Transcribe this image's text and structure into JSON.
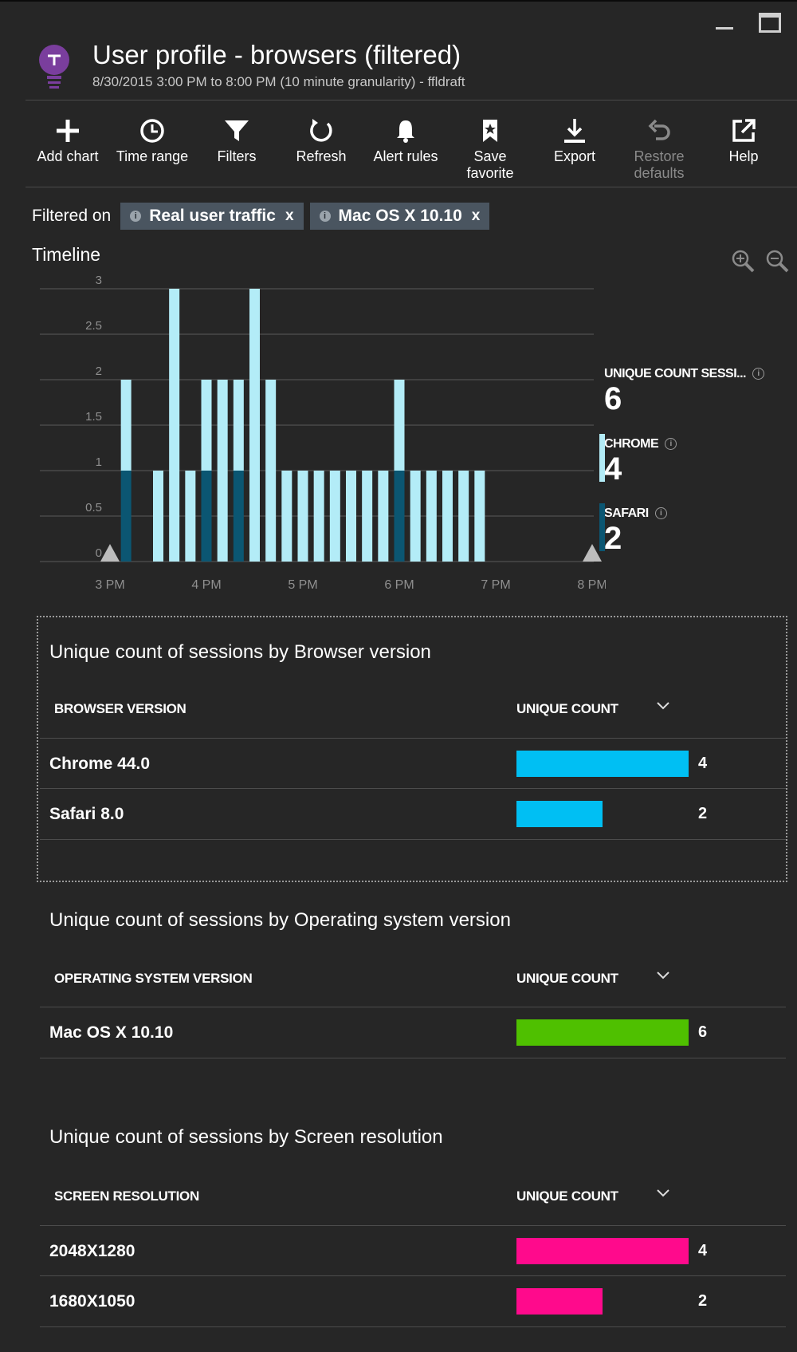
{
  "header": {
    "title": "User profile - browsers (filtered)",
    "subtitle": "8/30/2015 3:00 PM to 8:00 PM (10 minute granularity) - ffldraft"
  },
  "toolbar": {
    "add_chart": "Add chart",
    "time_range": "Time range",
    "filters": "Filters",
    "refresh": "Refresh",
    "alert_rules": "Alert rules",
    "save_favorite_1": "Save",
    "save_favorite_2": "favorite",
    "export": "Export",
    "restore_defaults_1": "Restore",
    "restore_defaults_2": "defaults",
    "help": "Help"
  },
  "filters": {
    "label": "Filtered on",
    "chips": [
      "Real user traffic",
      "Mac OS X 10.10"
    ],
    "remove": "x"
  },
  "timeline": {
    "title": "Timeline"
  },
  "legend": {
    "total_label": "UNIQUE COUNT SESSI...",
    "total_value": "6",
    "chrome_label": "CHROME",
    "chrome_value": "4",
    "safari_label": "SAFARI",
    "safari_value": "2",
    "info": "i"
  },
  "chart_data": {
    "type": "bar",
    "stacked": true,
    "title": "Timeline",
    "ylim": [
      0,
      3
    ],
    "yticks": [
      "0",
      "0.5",
      "1",
      "1.5",
      "2",
      "2.5",
      "3"
    ],
    "xticks": [
      "3 PM",
      "4 PM",
      "5 PM",
      "6 PM",
      "7 PM",
      "8 PM"
    ],
    "x": [
      "3:10",
      "3:20",
      "3:30",
      "3:40",
      "3:50",
      "4:00",
      "4:10",
      "4:20",
      "4:30",
      "4:40",
      "4:50",
      "5:00",
      "5:10",
      "5:20",
      "5:30",
      "5:40",
      "5:50",
      "6:00",
      "6:10",
      "6:20",
      "6:30",
      "6:40",
      "6:50"
    ],
    "series": [
      {
        "name": "SAFARI",
        "color": "#0b5672",
        "values": [
          1,
          0,
          0,
          0,
          0,
          1,
          0,
          1,
          0,
          0,
          0,
          0,
          0,
          0,
          0,
          0,
          0,
          1,
          0,
          0,
          0,
          0,
          0
        ]
      },
      {
        "name": "CHROME",
        "color": "#b3ecf7",
        "values": [
          1,
          0,
          1,
          3,
          1,
          1,
          2,
          1,
          3,
          2,
          1,
          1,
          1,
          1,
          1,
          1,
          1,
          1,
          1,
          1,
          1,
          1,
          1
        ]
      }
    ]
  },
  "grids": [
    {
      "title": "Unique count of sessions by Browser version",
      "col1": "BROWSER VERSION",
      "col2": "UNIQUE COUNT",
      "color": "#00bff3",
      "max": 4,
      "rows": [
        {
          "name": "Chrome 44.0",
          "value": 4,
          "label": "4"
        },
        {
          "name": "Safari 8.0",
          "value": 2,
          "label": "2"
        }
      ]
    },
    {
      "title": "Unique count of sessions by Operating system version",
      "col1": "OPERATING SYSTEM VERSION",
      "col2": "UNIQUE COUNT",
      "color": "#4fc000",
      "max": 6,
      "rows": [
        {
          "name": "Mac OS X 10.10",
          "value": 6,
          "label": "6"
        }
      ]
    },
    {
      "title": "Unique count of sessions by Screen resolution",
      "col1": "SCREEN RESOLUTION",
      "col2": "UNIQUE COUNT",
      "color": "#ff0a8c",
      "max": 4,
      "rows": [
        {
          "name": "2048X1280",
          "value": 4,
          "label": "4"
        },
        {
          "name": "1680X1050",
          "value": 2,
          "label": "2"
        }
      ]
    }
  ]
}
